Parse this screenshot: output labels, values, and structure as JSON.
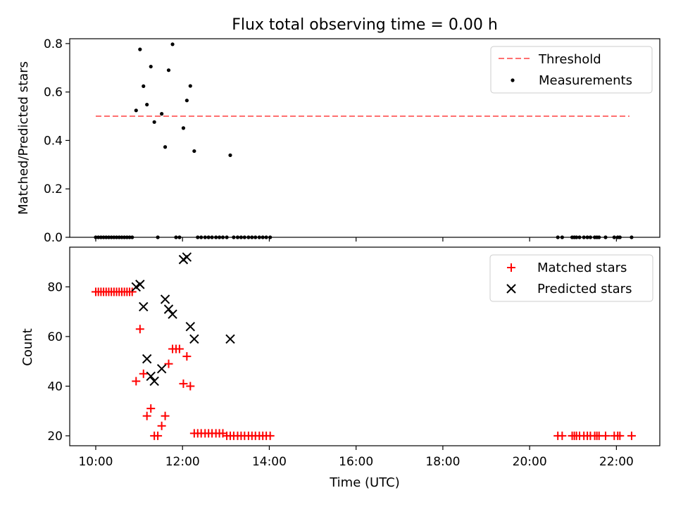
{
  "figure": {
    "title": "Flux total observing time = 0.00 h"
  },
  "chart_data": [
    {
      "type": "scatter",
      "ylabel": "Matched/Predicted stars",
      "xlim": [
        9.4,
        23.0
      ],
      "ylim": [
        0,
        0.82
      ],
      "yticks": [
        0.0,
        0.2,
        0.4,
        0.6,
        0.8
      ],
      "ytick_labels": [
        "0.0",
        "0.2",
        "0.4",
        "0.6",
        "0.8"
      ],
      "grid": false,
      "legend": {
        "location": "upper right",
        "entries": [
          {
            "label": "Threshold",
            "color": "#ff7070",
            "style": "dashed line"
          },
          {
            "label": "Measurements",
            "color": "#000000",
            "style": "dot"
          }
        ]
      },
      "threshold": {
        "name": "Threshold",
        "y": 0.5,
        "x_from": 10.0,
        "x_to": 22.3,
        "color": "#ff7070"
      },
      "series": [
        {
          "name": "Measurements",
          "color": "#000000",
          "x": [
            10.0,
            10.06,
            10.12,
            10.18,
            10.24,
            10.3,
            10.36,
            10.42,
            10.48,
            10.54,
            10.6,
            10.66,
            10.72,
            10.78,
            10.84,
            10.93,
            11.02,
            11.1,
            11.18,
            11.27,
            11.35,
            11.43,
            11.52,
            11.6,
            11.68,
            11.77,
            11.85,
            11.93,
            12.02,
            12.1,
            12.18,
            12.27,
            12.35,
            12.43,
            12.52,
            12.6,
            12.68,
            12.77,
            12.85,
            12.93,
            13.02,
            13.1,
            13.18,
            13.27,
            13.35,
            13.43,
            13.52,
            13.6,
            13.68,
            13.77,
            13.85,
            13.93,
            14.02,
            20.65,
            20.75,
            20.98,
            21.03,
            21.08,
            21.15,
            21.25,
            21.33,
            21.4,
            21.5,
            21.55,
            21.6,
            21.75,
            21.95,
            22.03,
            22.08,
            22.35
          ],
          "y": [
            0,
            0,
            0,
            0,
            0,
            0,
            0,
            0,
            0,
            0,
            0,
            0,
            0,
            0,
            0,
            0.524,
            0.776,
            0.624,
            0.548,
            0.705,
            0.476,
            0,
            0.51,
            0.373,
            0.69,
            0.797,
            0,
            0,
            0.451,
            0.565,
            0.625,
            0.356,
            0,
            0,
            0,
            0,
            0,
            0,
            0,
            0,
            0,
            0.339,
            0,
            0,
            0,
            0,
            0,
            0,
            0,
            0,
            0,
            0,
            0,
            0,
            0,
            0,
            0,
            0,
            0,
            0,
            0,
            0,
            0,
            0,
            0,
            0,
            0,
            0,
            0,
            0
          ]
        }
      ]
    },
    {
      "type": "scatter",
      "xlabel": "Time (UTC)",
      "ylabel": "Count",
      "xlim": [
        9.4,
        23.0
      ],
      "ylim": [
        16,
        96
      ],
      "yticks": [
        20,
        40,
        60,
        80
      ],
      "ytick_labels": [
        "20",
        "40",
        "60",
        "80"
      ],
      "xticks": [
        10,
        12,
        14,
        16,
        18,
        20,
        22
      ],
      "xtick_labels": [
        "10:00",
        "12:00",
        "14:00",
        "16:00",
        "18:00",
        "20:00",
        "22:00"
      ],
      "grid": false,
      "legend": {
        "location": "upper right",
        "entries": [
          {
            "label": "Matched stars",
            "color": "#ff0000",
            "marker": "plus"
          },
          {
            "label": "Predicted stars",
            "color": "#000000",
            "marker": "x"
          }
        ]
      },
      "series": [
        {
          "name": "Matched stars",
          "color": "#ff0000",
          "marker": "plus",
          "x": [
            10.0,
            10.06,
            10.12,
            10.18,
            10.24,
            10.3,
            10.36,
            10.42,
            10.48,
            10.54,
            10.6,
            10.66,
            10.72,
            10.78,
            10.84,
            10.93,
            11.02,
            11.1,
            11.18,
            11.27,
            11.35,
            11.43,
            11.52,
            11.6,
            11.68,
            11.77,
            11.85,
            11.93,
            12.02,
            12.1,
            12.18,
            12.27,
            12.35,
            12.43,
            12.52,
            12.6,
            12.68,
            12.77,
            12.85,
            12.93,
            13.02,
            13.1,
            13.18,
            13.27,
            13.35,
            13.43,
            13.52,
            13.6,
            13.68,
            13.77,
            13.85,
            13.93,
            14.02,
            20.65,
            20.75,
            20.98,
            21.03,
            21.08,
            21.15,
            21.25,
            21.33,
            21.4,
            21.5,
            21.55,
            21.6,
            21.75,
            21.95,
            22.03,
            22.08,
            22.35
          ],
          "y": [
            78,
            78,
            78,
            78,
            78,
            78,
            78,
            78,
            78,
            78,
            78,
            78,
            78,
            78,
            78,
            42,
            63,
            45,
            28,
            31,
            20,
            20,
            24,
            28,
            49,
            55,
            55,
            55,
            41,
            52,
            40,
            21,
            21,
            21,
            21,
            21,
            21,
            21,
            21,
            21,
            20,
            20,
            20,
            20,
            20,
            20,
            20,
            20,
            20,
            20,
            20,
            20,
            20,
            20,
            20,
            20,
            20,
            20,
            20,
            20,
            20,
            20,
            20,
            20,
            20,
            20,
            20,
            20,
            20,
            20
          ]
        },
        {
          "name": "Predicted stars",
          "color": "#000000",
          "marker": "x",
          "x": [
            10.93,
            11.02,
            11.1,
            11.18,
            11.27,
            11.35,
            11.52,
            11.6,
            11.68,
            11.77,
            12.02,
            12.1,
            12.18,
            12.27,
            13.1
          ],
          "y": [
            80,
            81,
            72,
            51,
            44,
            42,
            47,
            75,
            71,
            69,
            91,
            92,
            64,
            59,
            59
          ]
        }
      ]
    }
  ]
}
